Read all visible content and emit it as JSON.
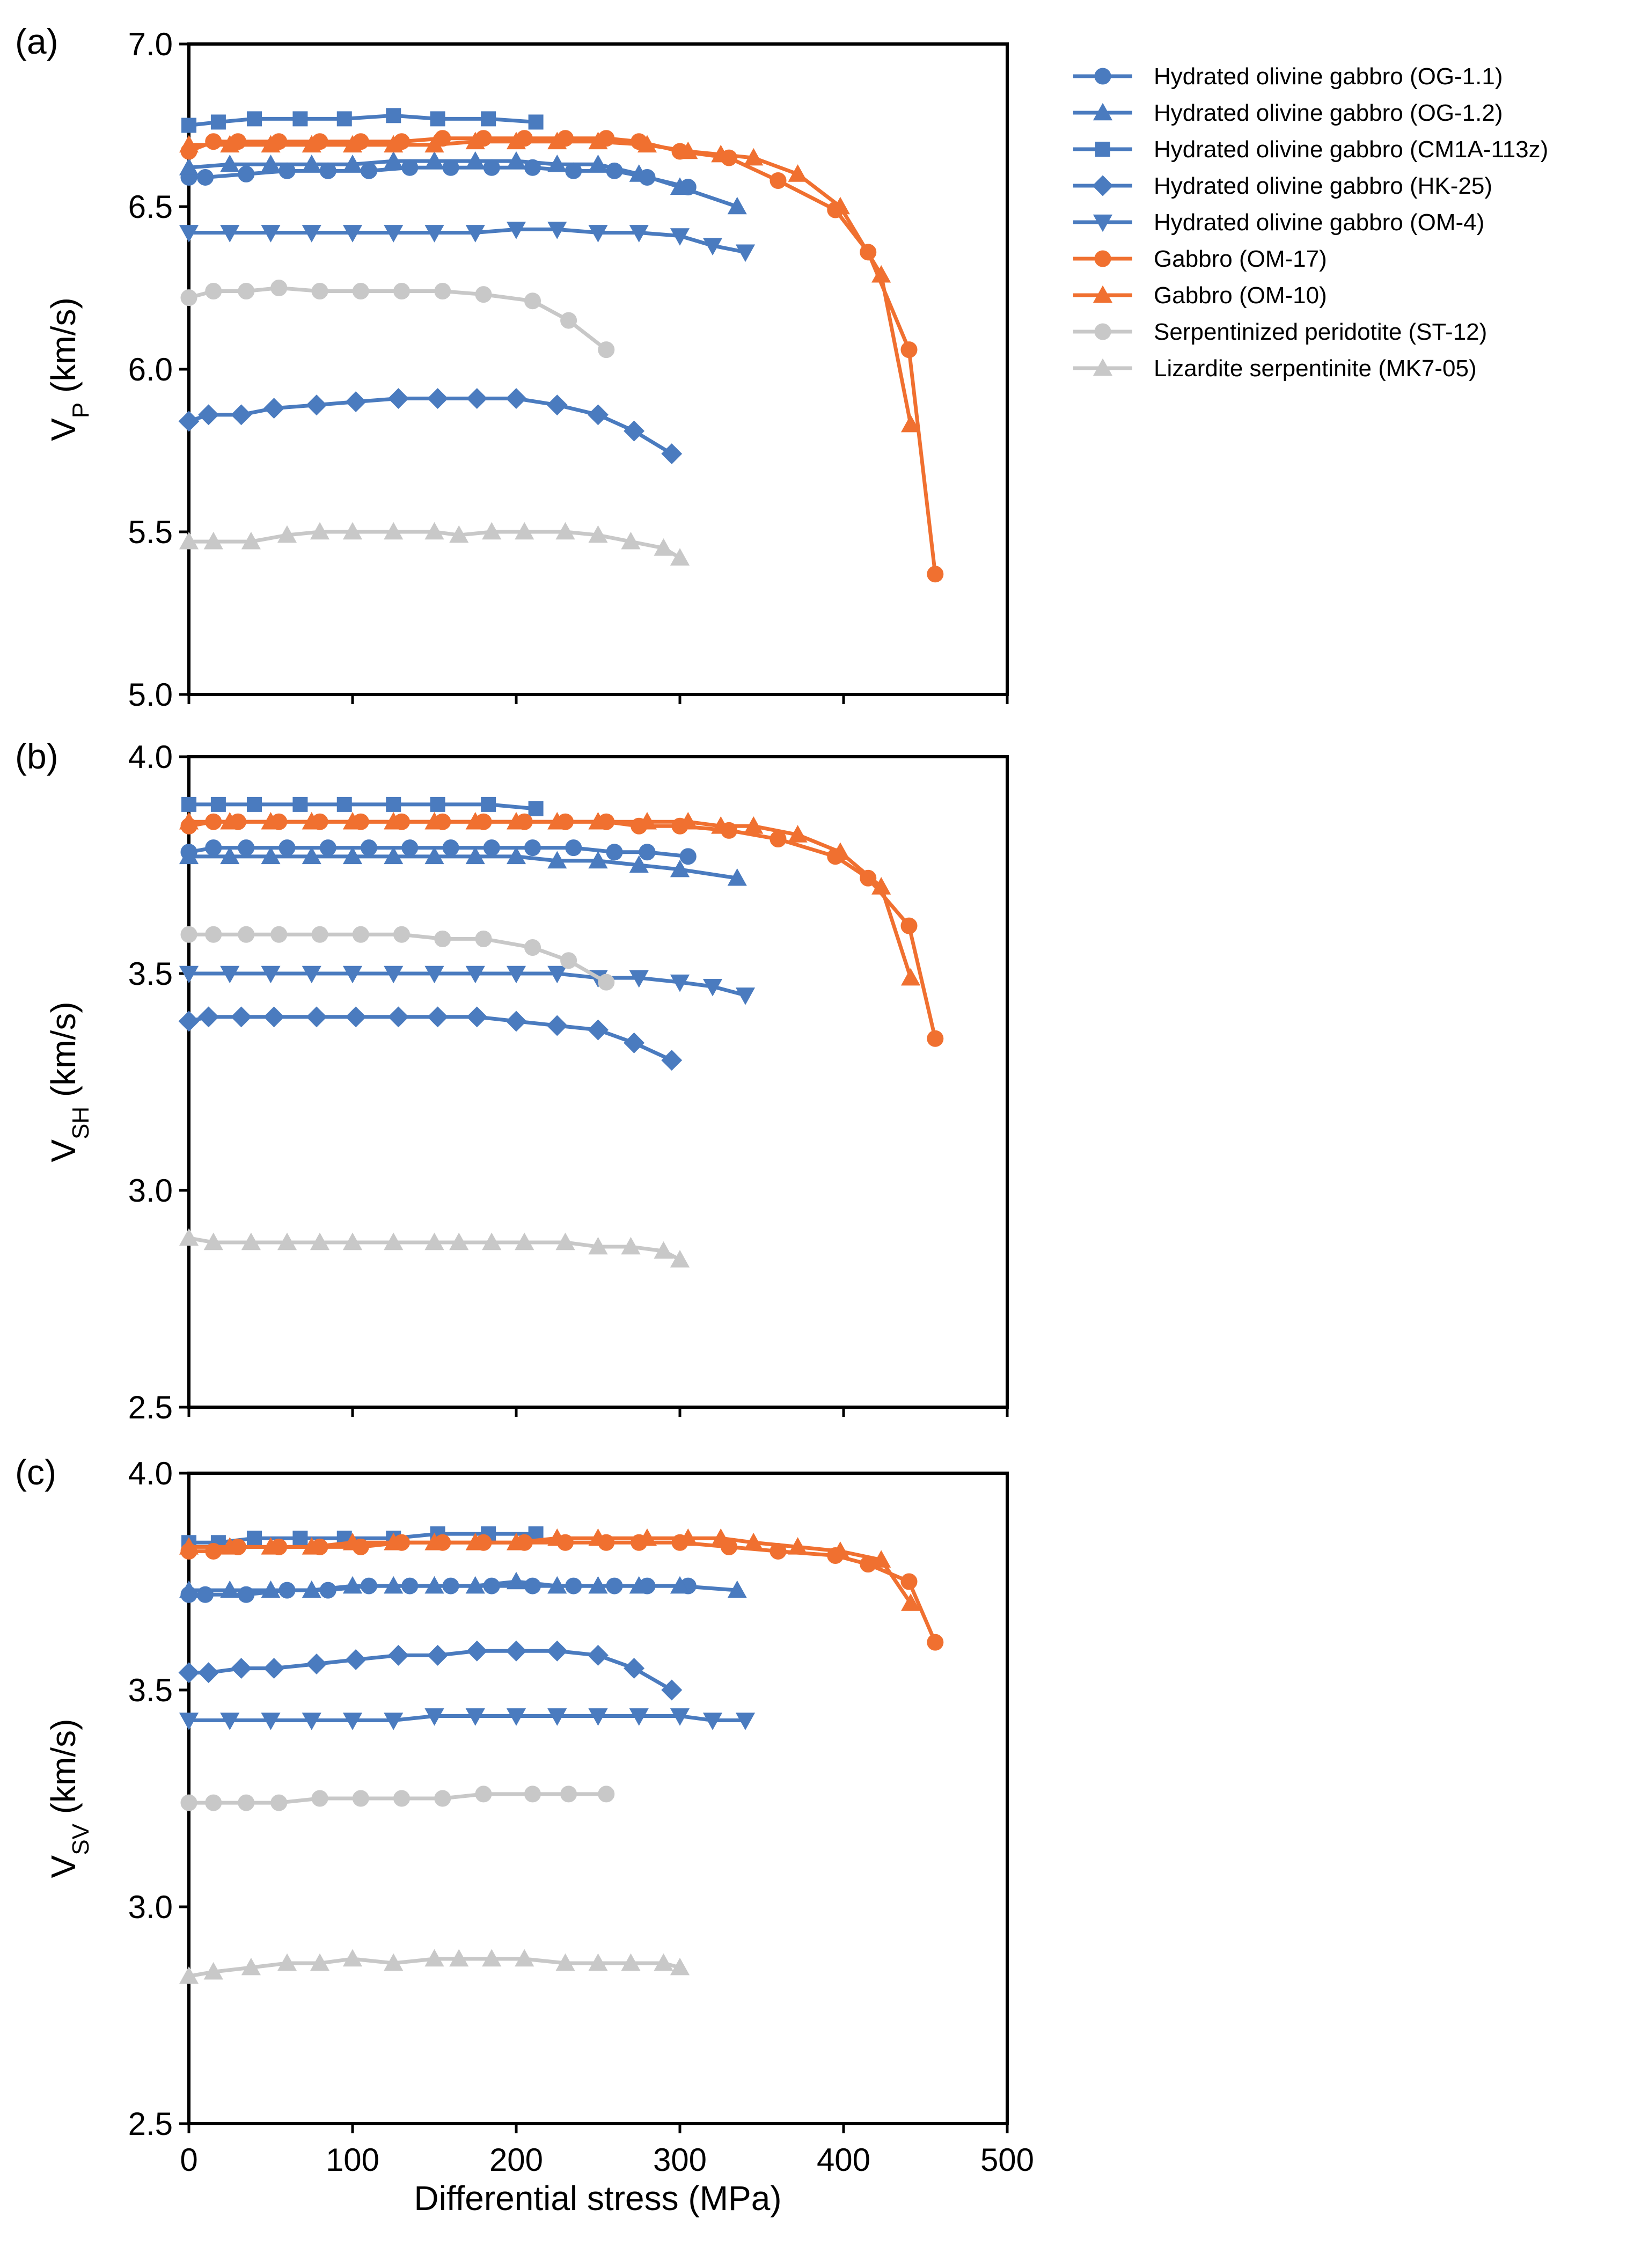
{
  "figure": {
    "xlabel": "Differential stress (MPa)",
    "xticks": [
      "0",
      "100",
      "200",
      "300",
      "400",
      "500"
    ],
    "xlim": [
      0,
      500
    ]
  },
  "legend": [
    {
      "label": "Hydrated olivine gabbro (OG-1.1)",
      "color": "#4a7bbf",
      "marker": "circle"
    },
    {
      "label": "Hydrated olivine gabbro (OG-1.2)",
      "color": "#4a7bbf",
      "marker": "triangle-up"
    },
    {
      "label": "Hydrated olivine gabbro (CM1A-113z)",
      "color": "#4a7bbf",
      "marker": "square"
    },
    {
      "label": "Hydrated olivine gabbro (HK-25)",
      "color": "#4a7bbf",
      "marker": "diamond"
    },
    {
      "label": "Hydrated olivine gabbro (OM-4)",
      "color": "#4a7bbf",
      "marker": "triangle-down"
    },
    {
      "label": "Gabbro (OM-17)",
      "color": "#f07030",
      "marker": "circle"
    },
    {
      "label": "Gabbro (OM-10)",
      "color": "#f07030",
      "marker": "triangle-up"
    },
    {
      "label": "Serpentinized peridotite (ST-12)",
      "color": "#c8c8c8",
      "marker": "circle"
    },
    {
      "label": "Lizardite serpentinite (MK7-05)",
      "color": "#c8c8c8",
      "marker": "triangle-up"
    }
  ],
  "chart_data": [
    {
      "type": "line",
      "panel": "(a)",
      "ylabel_main": "V",
      "ylabel_sub": "P",
      "ylabel_unit": " (km/s)",
      "xlabel": "Differential stress (MPa)",
      "ylim": [
        5.0,
        7.0
      ],
      "yticks": [
        "5.0",
        "5.5",
        "6.0",
        "6.5",
        "7.0"
      ],
      "series": [
        {
          "name": "Hydrated olivine gabbro (OG-1.1)",
          "x": [
            0,
            10,
            35,
            60,
            85,
            110,
            135,
            160,
            185,
            210,
            235,
            260,
            280,
            305
          ],
          "y": [
            6.59,
            6.59,
            6.6,
            6.61,
            6.61,
            6.61,
            6.62,
            6.62,
            6.62,
            6.62,
            6.61,
            6.61,
            6.59,
            6.56
          ]
        },
        {
          "name": "Hydrated olivine gabbro (OG-1.2)",
          "x": [
            0,
            25,
            50,
            75,
            100,
            125,
            150,
            175,
            200,
            225,
            250,
            275,
            300,
            335
          ],
          "y": [
            6.62,
            6.63,
            6.63,
            6.63,
            6.63,
            6.64,
            6.64,
            6.64,
            6.64,
            6.63,
            6.63,
            6.6,
            6.56,
            6.5
          ]
        },
        {
          "name": "Hydrated olivine gabbro (CM1A-113z)",
          "x": [
            0,
            18,
            40,
            68,
            95,
            125,
            152,
            183,
            212
          ],
          "y": [
            6.75,
            6.76,
            6.77,
            6.77,
            6.77,
            6.78,
            6.77,
            6.77,
            6.76
          ]
        },
        {
          "name": "Hydrated olivine gabbro (HK-25)",
          "x": [
            0,
            12,
            32,
            52,
            78,
            102,
            128,
            152,
            176,
            200,
            225,
            250,
            272,
            295
          ],
          "y": [
            5.84,
            5.86,
            5.86,
            5.88,
            5.89,
            5.9,
            5.91,
            5.91,
            5.91,
            5.91,
            5.89,
            5.86,
            5.81,
            5.74
          ]
        },
        {
          "name": "Hydrated olivine gabbro (OM-4)",
          "x": [
            0,
            25,
            50,
            75,
            100,
            125,
            150,
            175,
            200,
            225,
            250,
            275,
            300,
            320,
            340
          ],
          "y": [
            6.42,
            6.42,
            6.42,
            6.42,
            6.42,
            6.42,
            6.42,
            6.42,
            6.43,
            6.43,
            6.42,
            6.42,
            6.41,
            6.38,
            6.36
          ]
        },
        {
          "name": "Gabbro (OM-17)",
          "x": [
            0,
            15,
            30,
            55,
            80,
            105,
            130,
            155,
            180,
            205,
            230,
            255,
            275,
            300,
            330,
            360,
            395,
            415,
            440,
            456
          ],
          "y": [
            6.67,
            6.7,
            6.7,
            6.7,
            6.7,
            6.7,
            6.7,
            6.71,
            6.71,
            6.71,
            6.71,
            6.71,
            6.7,
            6.67,
            6.65,
            6.58,
            6.49,
            6.36,
            6.06,
            5.37
          ]
        },
        {
          "name": "Gabbro (OM-10)",
          "x": [
            0,
            25,
            50,
            75,
            100,
            125,
            150,
            175,
            200,
            225,
            250,
            280,
            305,
            325,
            345,
            372,
            398,
            423,
            441
          ],
          "y": [
            6.69,
            6.69,
            6.69,
            6.69,
            6.69,
            6.69,
            6.69,
            6.7,
            6.7,
            6.7,
            6.7,
            6.69,
            6.67,
            6.66,
            6.65,
            6.6,
            6.5,
            6.29,
            5.83
          ]
        },
        {
          "name": "Serpentinized peridotite (ST-12)",
          "x": [
            0,
            15,
            35,
            55,
            80,
            105,
            130,
            155,
            180,
            210,
            232,
            255
          ],
          "y": [
            6.22,
            6.24,
            6.24,
            6.25,
            6.24,
            6.24,
            6.24,
            6.24,
            6.23,
            6.21,
            6.15,
            6.06
          ]
        },
        {
          "name": "Lizardite serpentinite (MK7-05)",
          "x": [
            0,
            15,
            38,
            60,
            80,
            100,
            125,
            150,
            165,
            185,
            205,
            230,
            250,
            270,
            290,
            300
          ],
          "y": [
            5.47,
            5.47,
            5.47,
            5.49,
            5.5,
            5.5,
            5.5,
            5.5,
            5.49,
            5.5,
            5.5,
            5.5,
            5.49,
            5.47,
            5.45,
            5.42
          ]
        }
      ]
    },
    {
      "type": "line",
      "panel": "(b)",
      "ylabel_main": "V",
      "ylabel_sub": "SH",
      "ylabel_unit": " (km/s)",
      "xlabel": "Differential stress (MPa)",
      "ylim": [
        2.5,
        4.0
      ],
      "yticks": [
        "2.5",
        "3.0",
        "3.5",
        "4.0"
      ],
      "series": [
        {
          "name": "Hydrated olivine gabbro (OG-1.1)",
          "x": [
            0,
            15,
            35,
            60,
            85,
            110,
            135,
            160,
            185,
            210,
            235,
            260,
            280,
            305
          ],
          "y": [
            3.78,
            3.79,
            3.79,
            3.79,
            3.79,
            3.79,
            3.79,
            3.79,
            3.79,
            3.79,
            3.79,
            3.78,
            3.78,
            3.77
          ]
        },
        {
          "name": "Hydrated olivine gabbro (OG-1.2)",
          "x": [
            0,
            25,
            50,
            75,
            100,
            125,
            150,
            175,
            200,
            225,
            250,
            275,
            300,
            335
          ],
          "y": [
            3.77,
            3.77,
            3.77,
            3.77,
            3.77,
            3.77,
            3.77,
            3.77,
            3.77,
            3.76,
            3.76,
            3.75,
            3.74,
            3.72
          ]
        },
        {
          "name": "Hydrated olivine gabbro (CM1A-113z)",
          "x": [
            0,
            18,
            40,
            68,
            95,
            125,
            152,
            183,
            212
          ],
          "y": [
            3.89,
            3.89,
            3.89,
            3.89,
            3.89,
            3.89,
            3.89,
            3.89,
            3.88
          ]
        },
        {
          "name": "Hydrated olivine gabbro (HK-25)",
          "x": [
            0,
            12,
            32,
            52,
            78,
            102,
            128,
            152,
            176,
            200,
            225,
            250,
            272,
            295
          ],
          "y": [
            3.39,
            3.4,
            3.4,
            3.4,
            3.4,
            3.4,
            3.4,
            3.4,
            3.4,
            3.39,
            3.38,
            3.37,
            3.34,
            3.3
          ]
        },
        {
          "name": "Hydrated olivine gabbro (OM-4)",
          "x": [
            0,
            25,
            50,
            75,
            100,
            125,
            150,
            175,
            200,
            225,
            250,
            275,
            300,
            320,
            340
          ],
          "y": [
            3.5,
            3.5,
            3.5,
            3.5,
            3.5,
            3.5,
            3.5,
            3.5,
            3.5,
            3.5,
            3.49,
            3.49,
            3.48,
            3.47,
            3.45
          ]
        },
        {
          "name": "Gabbro (OM-17)",
          "x": [
            0,
            15,
            30,
            55,
            80,
            105,
            130,
            155,
            180,
            205,
            230,
            255,
            275,
            300,
            330,
            360,
            395,
            415,
            440,
            456
          ],
          "y": [
            3.84,
            3.85,
            3.85,
            3.85,
            3.85,
            3.85,
            3.85,
            3.85,
            3.85,
            3.85,
            3.85,
            3.85,
            3.84,
            3.84,
            3.83,
            3.81,
            3.77,
            3.72,
            3.61,
            3.35
          ]
        },
        {
          "name": "Gabbro (OM-10)",
          "x": [
            0,
            25,
            50,
            75,
            100,
            125,
            150,
            175,
            200,
            225,
            250,
            280,
            305,
            325,
            345,
            372,
            398,
            423,
            441
          ],
          "y": [
            3.85,
            3.85,
            3.85,
            3.85,
            3.85,
            3.85,
            3.85,
            3.85,
            3.85,
            3.85,
            3.85,
            3.85,
            3.85,
            3.84,
            3.84,
            3.82,
            3.78,
            3.7,
            3.49
          ]
        },
        {
          "name": "Serpentinized peridotite (ST-12)",
          "x": [
            0,
            15,
            35,
            55,
            80,
            105,
            130,
            155,
            180,
            210,
            232,
            255
          ],
          "y": [
            3.59,
            3.59,
            3.59,
            3.59,
            3.59,
            3.59,
            3.59,
            3.58,
            3.58,
            3.56,
            3.53,
            3.48
          ]
        },
        {
          "name": "Lizardite serpentinite (MK7-05)",
          "x": [
            0,
            15,
            38,
            60,
            80,
            100,
            125,
            150,
            165,
            185,
            205,
            230,
            250,
            270,
            290,
            300
          ],
          "y": [
            2.89,
            2.88,
            2.88,
            2.88,
            2.88,
            2.88,
            2.88,
            2.88,
            2.88,
            2.88,
            2.88,
            2.88,
            2.87,
            2.87,
            2.86,
            2.84
          ]
        }
      ]
    },
    {
      "type": "line",
      "panel": "(c)",
      "ylabel_main": "V",
      "ylabel_sub": "SV",
      "ylabel_unit": " (km/s)",
      "xlabel": "Differential stress (MPa)",
      "ylim": [
        2.5,
        4.0
      ],
      "yticks": [
        "2.5",
        "3.0",
        "3.5",
        "4.0"
      ],
      "series": [
        {
          "name": "Hydrated olivine gabbro (OG-1.1)",
          "x": [
            0,
            10,
            35,
            60,
            85,
            110,
            135,
            160,
            185,
            210,
            235,
            260,
            280,
            305
          ],
          "y": [
            3.72,
            3.72,
            3.72,
            3.73,
            3.73,
            3.74,
            3.74,
            3.74,
            3.74,
            3.74,
            3.74,
            3.74,
            3.74,
            3.74
          ]
        },
        {
          "name": "Hydrated olivine gabbro (OG-1.2)",
          "x": [
            0,
            25,
            50,
            75,
            100,
            125,
            150,
            175,
            200,
            225,
            250,
            275,
            300,
            335
          ],
          "y": [
            3.73,
            3.73,
            3.73,
            3.73,
            3.74,
            3.74,
            3.74,
            3.74,
            3.75,
            3.74,
            3.74,
            3.74,
            3.74,
            3.73
          ]
        },
        {
          "name": "Hydrated olivine gabbro (CM1A-113z)",
          "x": [
            0,
            18,
            40,
            68,
            95,
            125,
            152,
            183,
            212
          ],
          "y": [
            3.84,
            3.84,
            3.85,
            3.85,
            3.85,
            3.85,
            3.86,
            3.86,
            3.86
          ]
        },
        {
          "name": "Hydrated olivine gabbro (HK-25)",
          "x": [
            0,
            12,
            32,
            52,
            78,
            102,
            128,
            152,
            176,
            200,
            225,
            250,
            272,
            295
          ],
          "y": [
            3.54,
            3.54,
            3.55,
            3.55,
            3.56,
            3.57,
            3.58,
            3.58,
            3.59,
            3.59,
            3.59,
            3.58,
            3.55,
            3.5
          ]
        },
        {
          "name": "Hydrated olivine gabbro (OM-4)",
          "x": [
            0,
            25,
            50,
            75,
            100,
            125,
            150,
            175,
            200,
            225,
            250,
            275,
            300,
            320,
            340
          ],
          "y": [
            3.43,
            3.43,
            3.43,
            3.43,
            3.43,
            3.43,
            3.44,
            3.44,
            3.44,
            3.44,
            3.44,
            3.44,
            3.44,
            3.43,
            3.43
          ]
        },
        {
          "name": "Gabbro (OM-17)",
          "x": [
            0,
            15,
            30,
            55,
            80,
            105,
            130,
            155,
            180,
            205,
            230,
            255,
            275,
            300,
            330,
            360,
            395,
            415,
            440,
            456
          ],
          "y": [
            3.82,
            3.82,
            3.83,
            3.83,
            3.83,
            3.83,
            3.84,
            3.84,
            3.84,
            3.84,
            3.84,
            3.84,
            3.84,
            3.84,
            3.83,
            3.82,
            3.81,
            3.79,
            3.75,
            3.61
          ]
        },
        {
          "name": "Gabbro (OM-10)",
          "x": [
            0,
            25,
            50,
            75,
            100,
            125,
            150,
            175,
            200,
            225,
            250,
            280,
            305,
            325,
            345,
            372,
            398,
            423,
            441
          ],
          "y": [
            3.83,
            3.83,
            3.83,
            3.83,
            3.84,
            3.84,
            3.84,
            3.84,
            3.84,
            3.85,
            3.85,
            3.85,
            3.85,
            3.85,
            3.84,
            3.83,
            3.82,
            3.8,
            3.7
          ]
        },
        {
          "name": "Serpentinized peridotite (ST-12)",
          "x": [
            0,
            15,
            35,
            55,
            80,
            105,
            130,
            155,
            180,
            210,
            232,
            255
          ],
          "y": [
            3.24,
            3.24,
            3.24,
            3.24,
            3.25,
            3.25,
            3.25,
            3.25,
            3.26,
            3.26,
            3.26,
            3.26
          ]
        },
        {
          "name": "Lizardite serpentinite (MK7-05)",
          "x": [
            0,
            15,
            38,
            60,
            80,
            100,
            125,
            150,
            165,
            185,
            205,
            230,
            250,
            270,
            290,
            300
          ],
          "y": [
            2.84,
            2.85,
            2.86,
            2.87,
            2.87,
            2.88,
            2.87,
            2.88,
            2.88,
            2.88,
            2.88,
            2.87,
            2.87,
            2.87,
            2.87,
            2.86
          ]
        }
      ]
    }
  ]
}
